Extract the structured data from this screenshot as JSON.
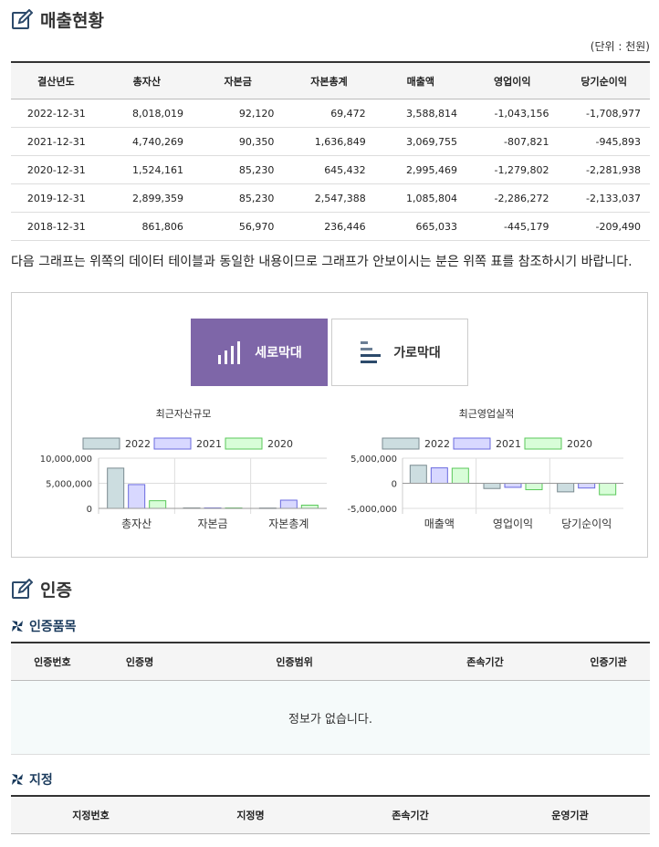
{
  "sales": {
    "title": "매출현황",
    "unit": "(단위 : 천원)",
    "headers": [
      "결산년도",
      "총자산",
      "자본금",
      "자본총계",
      "매출액",
      "영업이익",
      "당기순이익"
    ],
    "rows": [
      [
        "2022-12-31",
        "8,018,019",
        "92,120",
        "69,472",
        "3,588,814",
        "-1,043,156",
        "-1,708,977"
      ],
      [
        "2021-12-31",
        "4,740,269",
        "90,350",
        "1,636,849",
        "3,069,755",
        "-807,821",
        "-945,893"
      ],
      [
        "2020-12-31",
        "1,524,161",
        "85,230",
        "645,432",
        "2,995,469",
        "-1,279,802",
        "-2,281,938"
      ],
      [
        "2019-12-31",
        "2,899,359",
        "85,230",
        "2,547,388",
        "1,085,804",
        "-2,286,272",
        "-2,133,037"
      ],
      [
        "2018-12-31",
        "861,806",
        "56,970",
        "236,446",
        "665,033",
        "-445,179",
        "-209,490"
      ]
    ]
  },
  "notice": "다음 그래프는 위쪽의 데이터 테이블과 동일한 내용이므로 그래프가 안보이시는 분은 위쪽 표를 참조하시기 바랍니다.",
  "chart_tabs": {
    "vertical": "세로막대",
    "horizontal": "가로막대"
  },
  "chart_data": [
    {
      "type": "bar",
      "title": "최근자산규모",
      "categories": [
        "총자산",
        "자본금",
        "자본총계"
      ],
      "series": [
        {
          "name": "2022",
          "values": [
            8018019,
            92120,
            69472
          ]
        },
        {
          "name": "2021",
          "values": [
            4740269,
            90350,
            1636849
          ]
        },
        {
          "name": "2020",
          "values": [
            1524161,
            85230,
            645432
          ]
        }
      ],
      "ylim": [
        0,
        10000000
      ],
      "yticks": [
        "10,000,000",
        "5,000,000",
        "0"
      ],
      "legend": "top"
    },
    {
      "type": "bar",
      "title": "최근영업실적",
      "categories": [
        "매출액",
        "영업이익",
        "당기순이익"
      ],
      "series": [
        {
          "name": "2022",
          "values": [
            3588814,
            -1043156,
            -1708977
          ]
        },
        {
          "name": "2021",
          "values": [
            3069755,
            -807821,
            -945893
          ]
        },
        {
          "name": "2020",
          "values": [
            2995469,
            -1279802,
            -2281938
          ]
        }
      ],
      "ylim": [
        -5000000,
        5000000
      ],
      "yticks": [
        "5,000,000",
        "0",
        "-5,000,000"
      ],
      "legend": "top"
    }
  ],
  "series_colors": [
    "#ccdde0",
    "#d8d8ff",
    "#d8fdd8"
  ],
  "series_borders": [
    "#7a8a90",
    "#6a6adf",
    "#5ac85a"
  ],
  "cert": {
    "title": "인증",
    "items_title": "인증품목",
    "items_headers": [
      "인증번호",
      "인증명",
      "인증범위",
      "존속기간",
      "인증기관"
    ],
    "empty": "정보가 없습니다.",
    "designation_title": "지정",
    "designation_headers": [
      "지정번호",
      "지정명",
      "존속기간",
      "운영기관"
    ]
  }
}
